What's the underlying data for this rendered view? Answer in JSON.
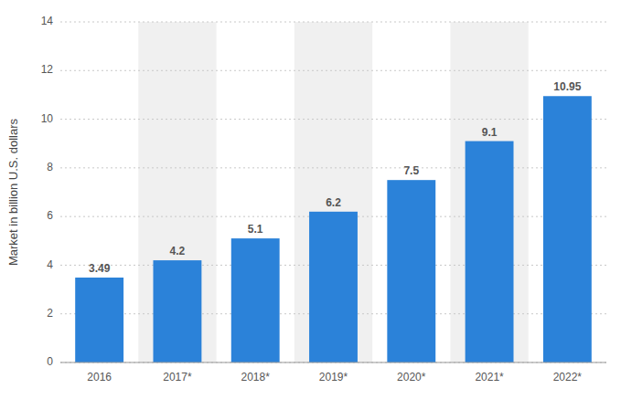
{
  "chart_data": {
    "type": "bar",
    "categories": [
      "2016",
      "2017*",
      "2018*",
      "2019*",
      "2020*",
      "2021*",
      "2022*"
    ],
    "values": [
      3.49,
      4.2,
      5.1,
      6.2,
      7.5,
      9.1,
      10.95
    ],
    "color": "#2b82d9",
    "ylabel": "Market in billion U.S. dollars",
    "ylim": [
      0,
      14
    ],
    "yticks": [
      0,
      2,
      4,
      6,
      8,
      10,
      12,
      14
    ],
    "grid": true,
    "data_labels": true
  }
}
